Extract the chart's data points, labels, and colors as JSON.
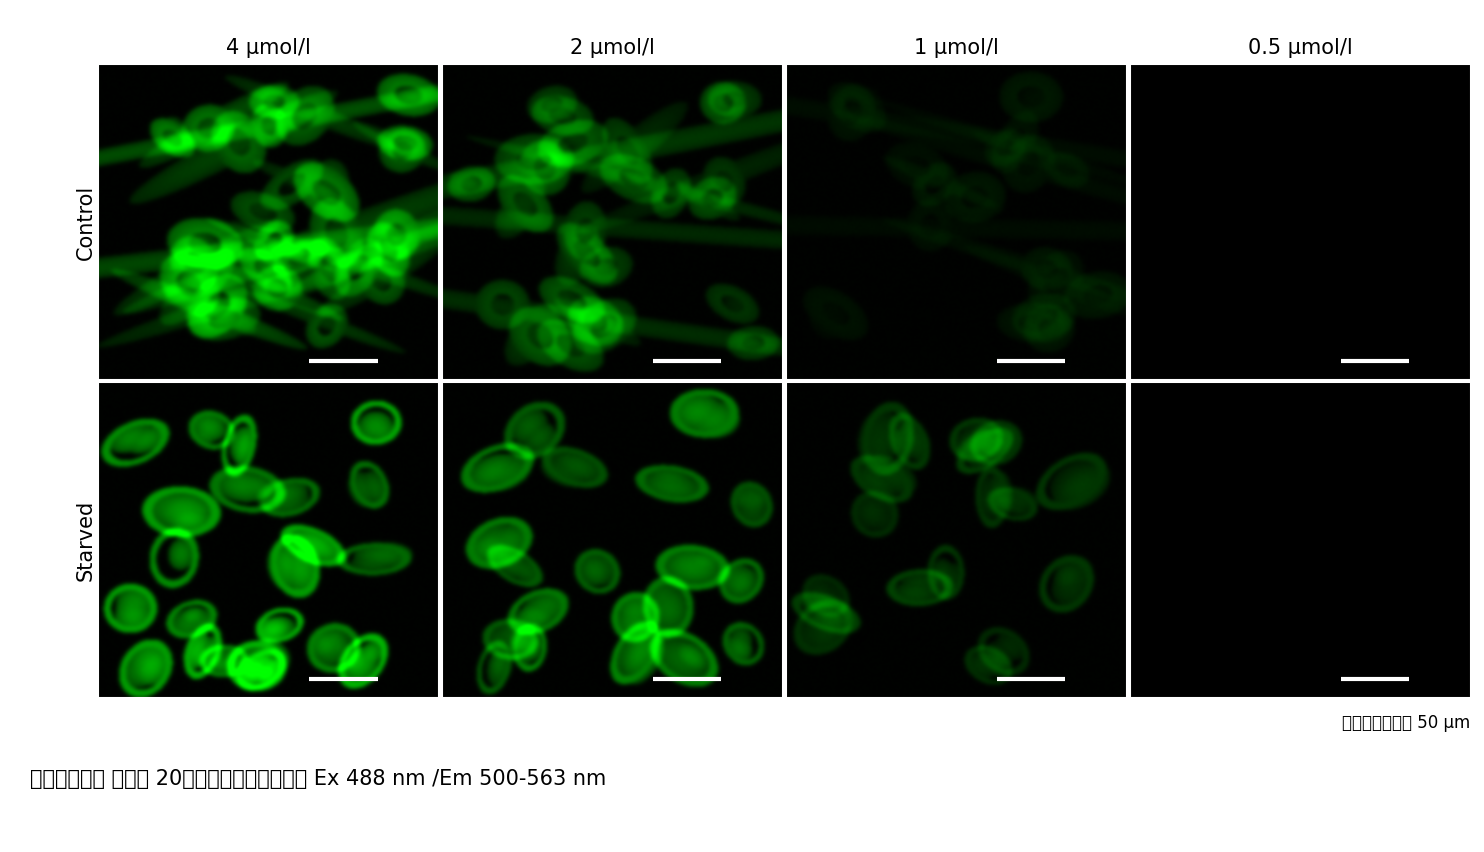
{
  "col_labels": [
    "4 μmol/l",
    "2 μmol/l",
    "1 μmol/l",
    "0.5 μmol/l"
  ],
  "row_labels": [
    "Control",
    "Starved"
  ],
  "scale_bar_text": "スケールバー： 50 μm",
  "condition_text": "＜検出条件＞ 倍率： 20倍　励起・荧光波長： Ex 488 nm /Em 500-563 nm",
  "figure_bg": "#ffffff",
  "text_color": "#000000",
  "n_rows": 2,
  "n_cols": 4,
  "img_size": 300,
  "brightness_control": [
    0.55,
    0.38,
    0.1,
    0.02
  ],
  "brightness_starved": [
    0.8,
    0.6,
    0.28,
    0.04
  ],
  "cell_count_control": [
    28,
    25,
    18,
    0
  ],
  "cell_count_starved": [
    22,
    20,
    18,
    0
  ],
  "seeds_control": [
    101,
    202,
    303,
    404
  ],
  "seeds_starved": [
    505,
    606,
    707,
    808
  ]
}
